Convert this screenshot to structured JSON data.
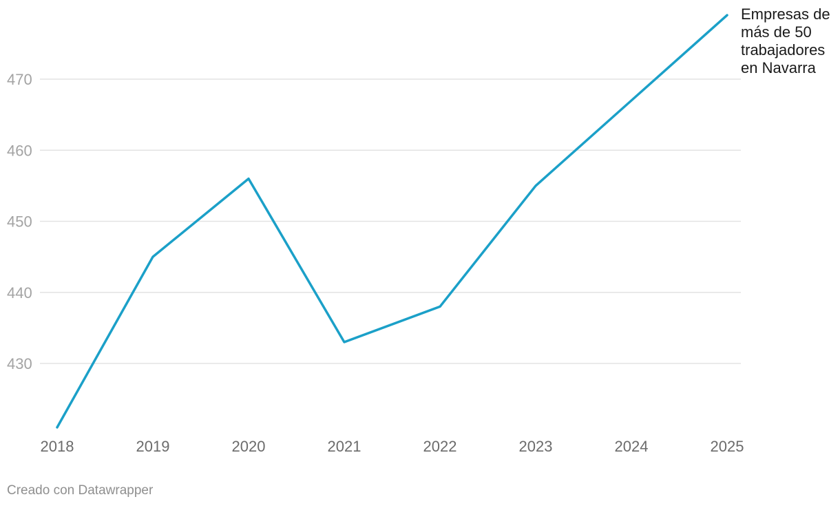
{
  "chart_data": {
    "type": "line",
    "x": [
      "2018",
      "2019",
      "2020",
      "2021",
      "2022",
      "2023",
      "2024",
      "2025"
    ],
    "series": [
      {
        "name": "Empresas de más de 50 trabajadores en Navarra",
        "values": [
          421,
          445,
          456,
          433,
          438,
          455,
          467,
          479
        ],
        "color": "#1ba0c8"
      }
    ],
    "yticks": [
      430,
      440,
      450,
      460,
      470
    ],
    "ylim": [
      421,
      479
    ],
    "grid": true,
    "legend": "direct label at line end"
  },
  "footer": "Creado con Datawrapper"
}
